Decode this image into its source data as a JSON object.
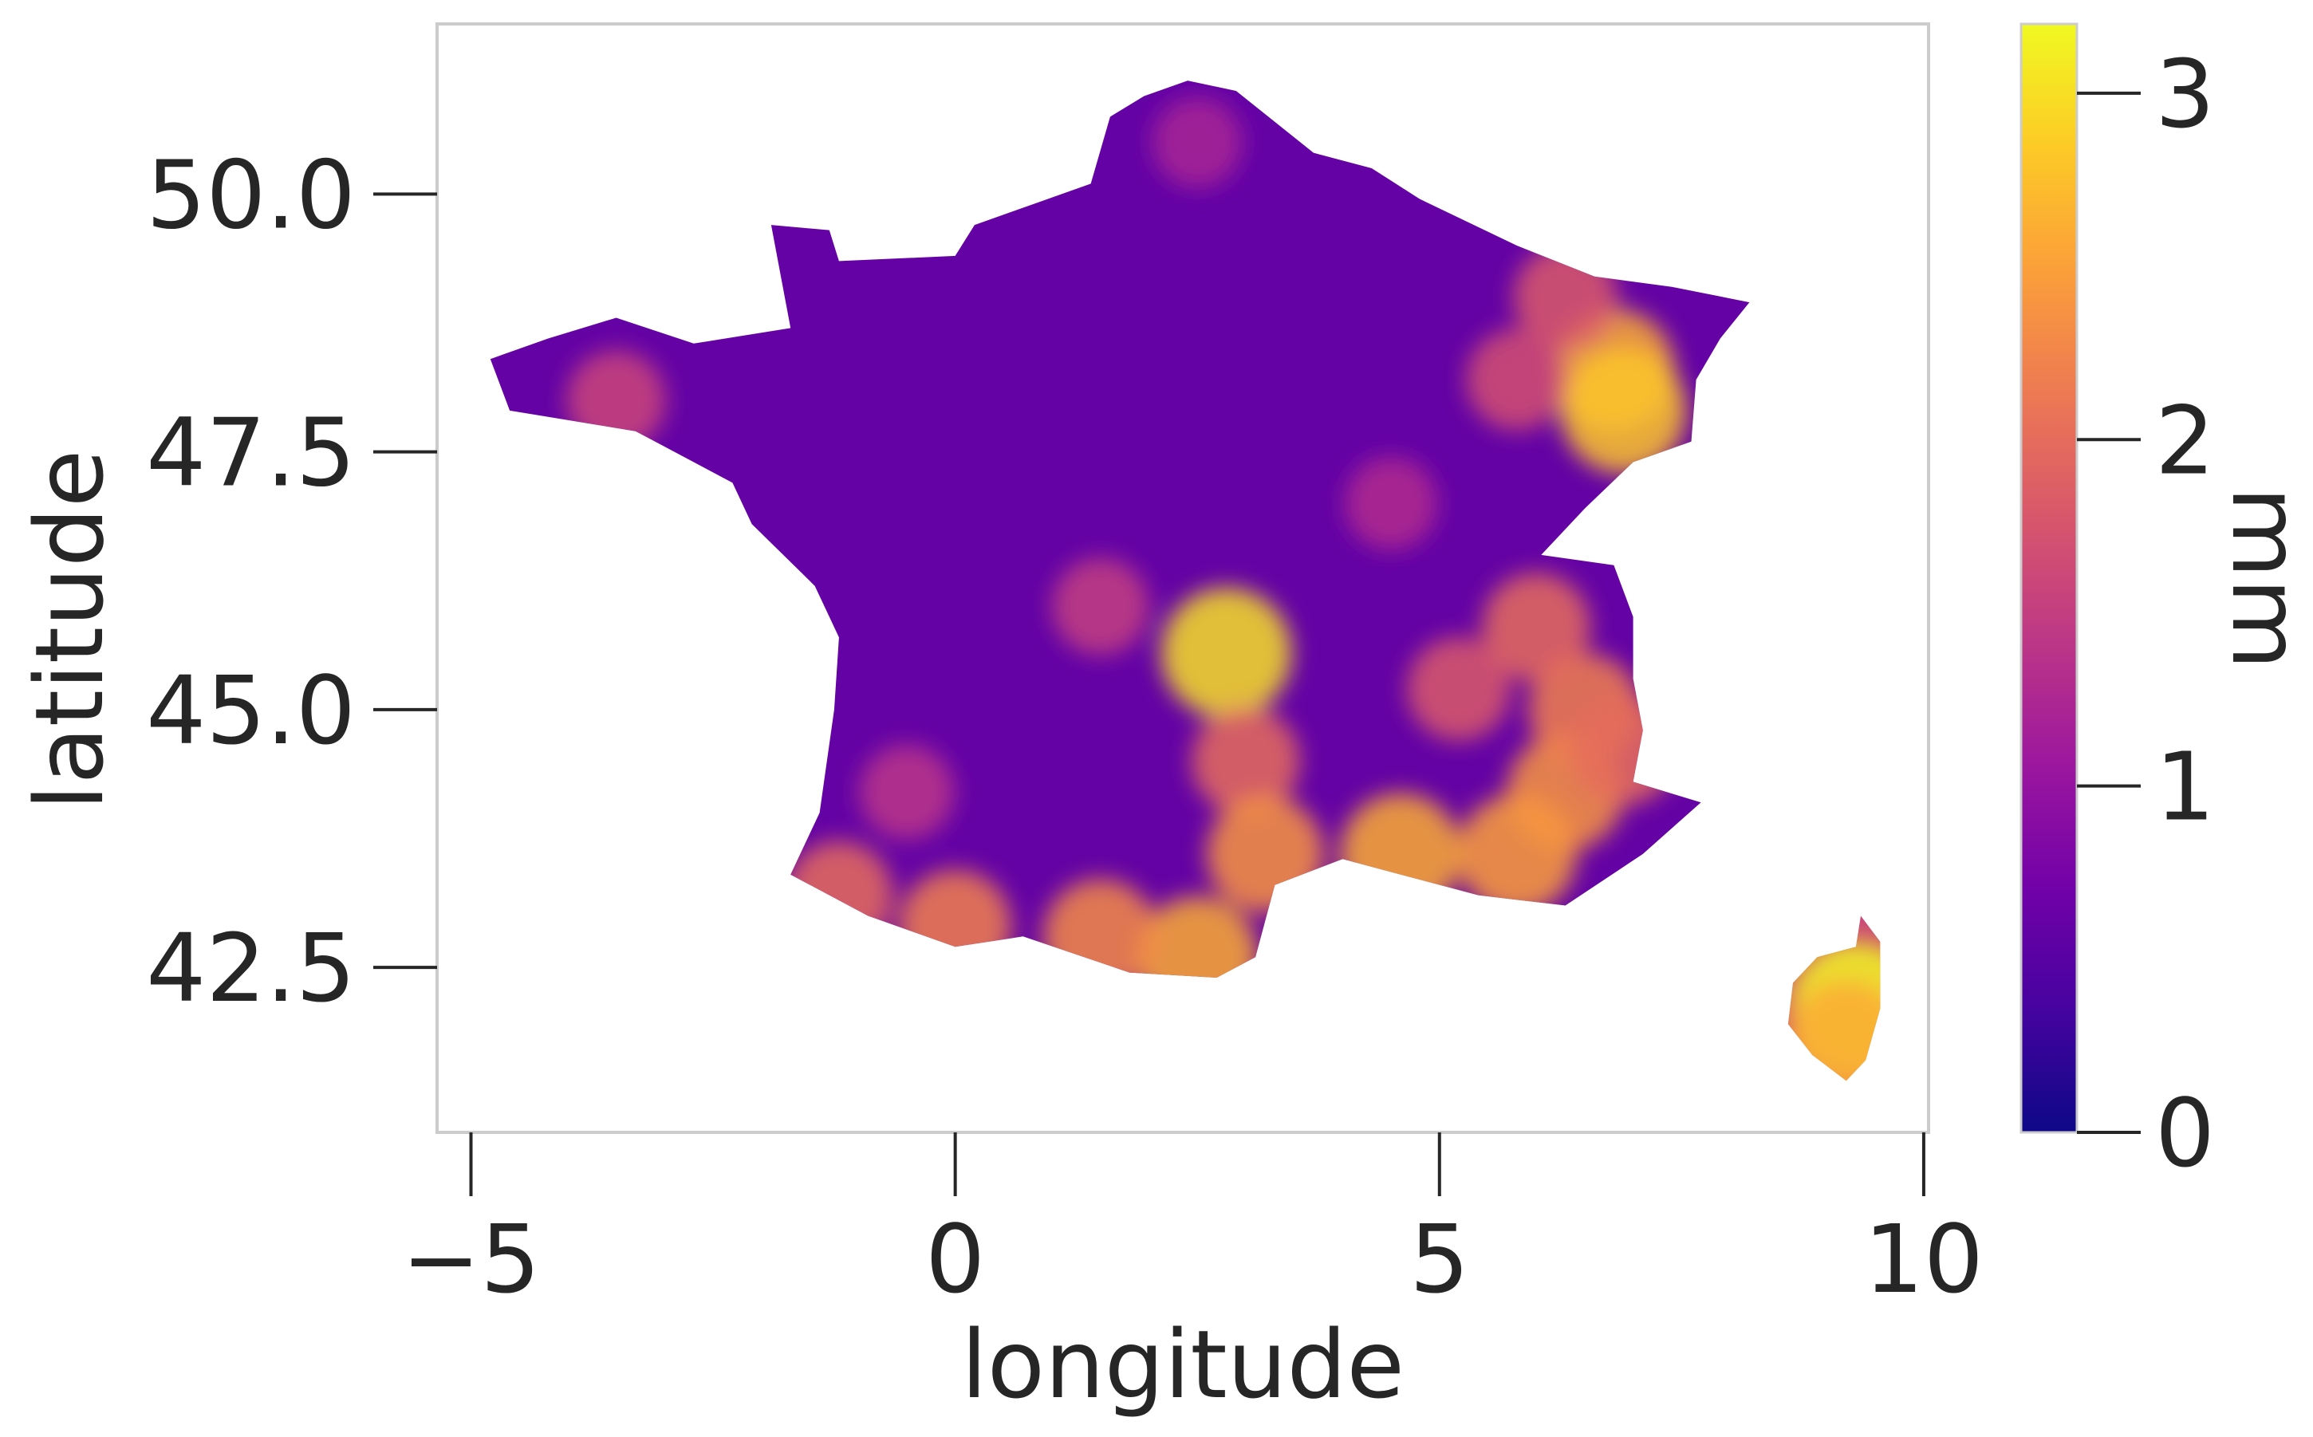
{
  "chart_data": {
    "type": "heatmap",
    "title": "",
    "xlabel": "longitude",
    "ylabel": "latitude",
    "xlim": [
      -5.35,
      10.05
    ],
    "ylim": [
      40.9,
      51.65
    ],
    "x_ticks": [
      {
        "value": -5,
        "label": "−5"
      },
      {
        "value": 0,
        "label": "0"
      },
      {
        "value": 5,
        "label": "5"
      },
      {
        "value": 10,
        "label": "10"
      }
    ],
    "y_ticks": [
      {
        "value": 42.5,
        "label": "42.5"
      },
      {
        "value": 45.0,
        "label": "45.0"
      },
      {
        "value": 47.5,
        "label": "47.5"
      },
      {
        "value": 50.0,
        "label": "50.0"
      }
    ],
    "grid": false,
    "colormap": "plasma",
    "colorbar": {
      "label": "mm",
      "vmin": 0,
      "vmax": 3.2,
      "ticks": [
        {
          "value": 0,
          "label": "0"
        },
        {
          "value": 1,
          "label": "1"
        },
        {
          "value": 2,
          "label": "2"
        },
        {
          "value": 3,
          "label": "3"
        }
      ],
      "stops": [
        "#0d0887",
        "#46039f",
        "#7201a8",
        "#9c179e",
        "#bd3786",
        "#d8576b",
        "#ed7953",
        "#fb9f3a",
        "#fdca26",
        "#f0f921"
      ]
    },
    "regions": [
      {
        "name": "mainland-france",
        "base_value": 0.6,
        "outline": [
          [
            2.4,
            51.1
          ],
          [
            2.9,
            51.0
          ],
          [
            3.7,
            50.4
          ],
          [
            4.3,
            50.25
          ],
          [
            4.8,
            49.95
          ],
          [
            5.8,
            49.5
          ],
          [
            6.6,
            49.2
          ],
          [
            7.4,
            49.1
          ],
          [
            8.2,
            48.95
          ],
          [
            7.9,
            48.6
          ],
          [
            7.65,
            48.2
          ],
          [
            7.6,
            47.6
          ],
          [
            7.0,
            47.4
          ],
          [
            6.5,
            46.95
          ],
          [
            6.05,
            46.5
          ],
          [
            6.8,
            46.4
          ],
          [
            7.0,
            45.9
          ],
          [
            7.0,
            45.3
          ],
          [
            7.1,
            44.8
          ],
          [
            7.0,
            44.3
          ],
          [
            7.7,
            44.1
          ],
          [
            7.1,
            43.6
          ],
          [
            6.3,
            43.1
          ],
          [
            5.4,
            43.2
          ],
          [
            4.6,
            43.4
          ],
          [
            4.0,
            43.55
          ],
          [
            3.3,
            43.3
          ],
          [
            3.1,
            42.6
          ],
          [
            2.7,
            42.4
          ],
          [
            1.8,
            42.45
          ],
          [
            0.7,
            42.8
          ],
          [
            0.0,
            42.7
          ],
          [
            -0.9,
            43.0
          ],
          [
            -1.7,
            43.4
          ],
          [
            -1.4,
            44.0
          ],
          [
            -1.25,
            45.0
          ],
          [
            -1.2,
            45.7
          ],
          [
            -1.45,
            46.2
          ],
          [
            -2.1,
            46.8
          ],
          [
            -2.3,
            47.2
          ],
          [
            -3.3,
            47.7
          ],
          [
            -4.6,
            47.9
          ],
          [
            -4.8,
            48.4
          ],
          [
            -4.2,
            48.6
          ],
          [
            -3.5,
            48.8
          ],
          [
            -2.7,
            48.55
          ],
          [
            -1.7,
            48.7
          ],
          [
            -1.9,
            49.7
          ],
          [
            -1.3,
            49.65
          ],
          [
            -1.2,
            49.35
          ],
          [
            0.0,
            49.4
          ],
          [
            0.2,
            49.7
          ],
          [
            1.4,
            50.1
          ],
          [
            1.6,
            50.75
          ],
          [
            1.95,
            50.95
          ]
        ]
      },
      {
        "name": "corsica",
        "base_value": 1.6,
        "outline": [
          [
            9.35,
            43.0
          ],
          [
            9.55,
            42.75
          ],
          [
            9.55,
            42.1
          ],
          [
            9.4,
            41.6
          ],
          [
            9.2,
            41.4
          ],
          [
            8.85,
            41.65
          ],
          [
            8.6,
            41.95
          ],
          [
            8.65,
            42.35
          ],
          [
            8.9,
            42.6
          ],
          [
            9.3,
            42.7
          ]
        ]
      }
    ],
    "hotspots": [
      {
        "lon": 6.8,
        "lat": 48.3,
        "value": 2.6
      },
      {
        "lon": 6.9,
        "lat": 47.9,
        "value": 2.8
      },
      {
        "lon": 6.3,
        "lat": 49.0,
        "value": 1.8
      },
      {
        "lon": 5.8,
        "lat": 48.2,
        "value": 1.7
      },
      {
        "lon": 2.8,
        "lat": 45.55,
        "value": 3.0
      },
      {
        "lon": 3.0,
        "lat": 44.5,
        "value": 2.0
      },
      {
        "lon": 3.2,
        "lat": 43.6,
        "value": 2.4
      },
      {
        "lon": 4.6,
        "lat": 43.6,
        "value": 2.6
      },
      {
        "lon": 5.8,
        "lat": 43.6,
        "value": 2.5
      },
      {
        "lon": 6.3,
        "lat": 44.2,
        "value": 2.4
      },
      {
        "lon": 6.5,
        "lat": 45.0,
        "value": 2.2
      },
      {
        "lon": 6.0,
        "lat": 45.8,
        "value": 2.0
      },
      {
        "lon": 6.9,
        "lat": 44.6,
        "value": 2.0
      },
      {
        "lon": 2.5,
        "lat": 42.6,
        "value": 2.6
      },
      {
        "lon": 1.5,
        "lat": 42.8,
        "value": 2.3
      },
      {
        "lon": 0.0,
        "lat": 42.9,
        "value": 2.2
      },
      {
        "lon": -1.2,
        "lat": 43.2,
        "value": 2.0
      },
      {
        "lon": -3.5,
        "lat": 48.0,
        "value": 1.6
      },
      {
        "lon": 1.5,
        "lat": 46.0,
        "value": 1.5
      },
      {
        "lon": 9.3,
        "lat": 42.1,
        "value": 3.2
      },
      {
        "lon": 9.2,
        "lat": 41.8,
        "value": 2.6
      },
      {
        "lon": 2.5,
        "lat": 50.5,
        "value": 1.2
      },
      {
        "lon": 4.5,
        "lat": 47.0,
        "value": 1.3
      },
      {
        "lon": -0.5,
        "lat": 44.2,
        "value": 1.4
      },
      {
        "lon": 5.2,
        "lat": 45.2,
        "value": 1.8
      }
    ]
  }
}
